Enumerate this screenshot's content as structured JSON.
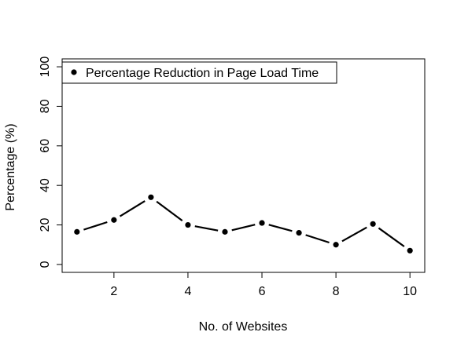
{
  "chart_data": {
    "type": "line",
    "title": "",
    "xlabel": "No. of Websites",
    "ylabel": "Percentage (%)",
    "xlim": [
      0.6,
      10.4
    ],
    "ylim": [
      -4,
      104
    ],
    "x_ticks": [
      2,
      4,
      6,
      8,
      10
    ],
    "y_ticks": [
      0,
      20,
      40,
      60,
      80,
      100
    ],
    "grid": false,
    "legend_position": "top-left",
    "series": [
      {
        "name": "Percentage Reduction in Page Load Time",
        "color": "#000000",
        "marker": "filled-circle",
        "line_style": "solid",
        "x": [
          1,
          2,
          3,
          4,
          5,
          6,
          7,
          8,
          9,
          10
        ],
        "y": [
          16.5,
          22.5,
          34,
          20,
          16.5,
          21,
          16,
          10,
          20.5,
          7
        ]
      }
    ]
  }
}
